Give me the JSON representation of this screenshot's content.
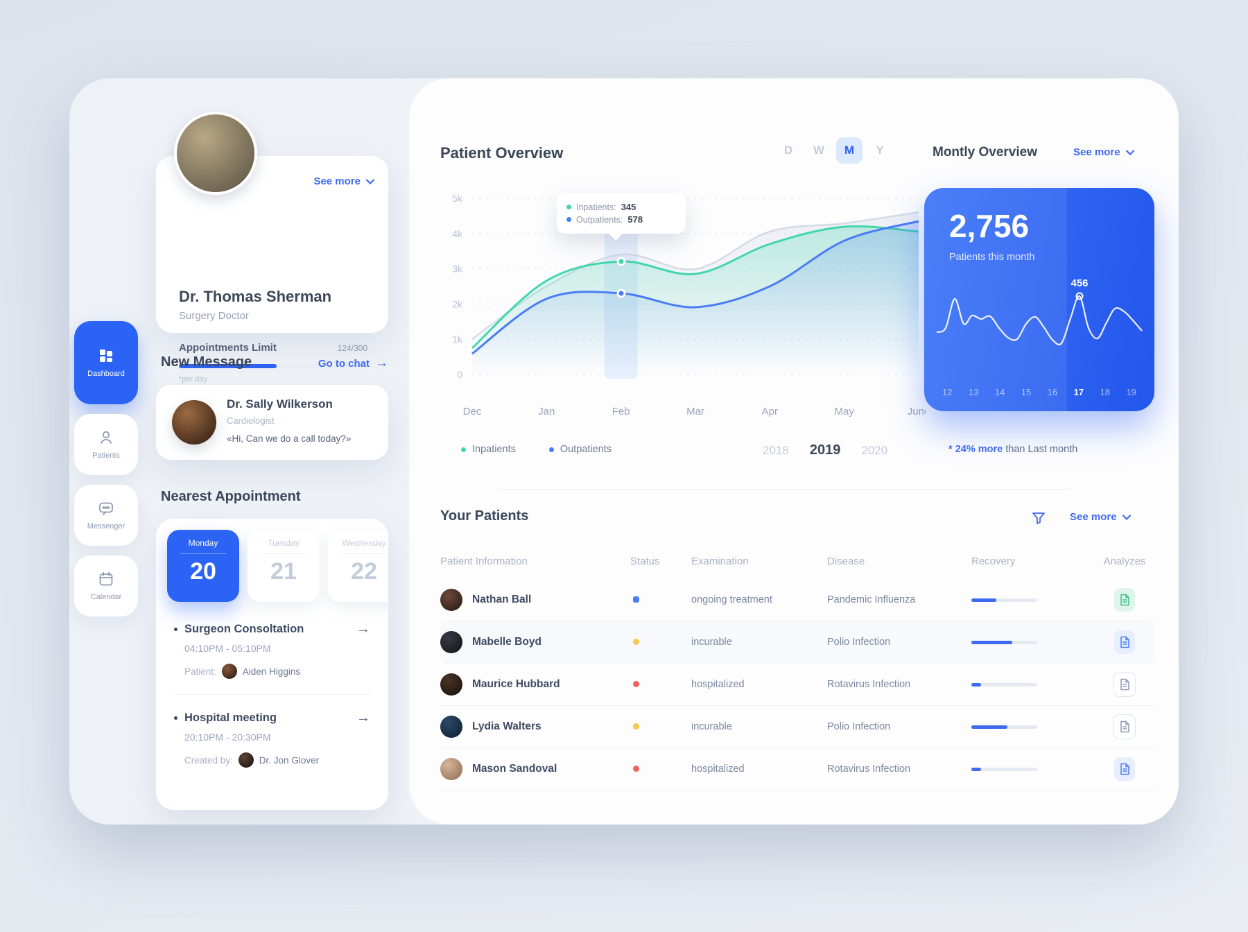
{
  "icons": {
    "arrow_right": "→",
    "star": "*"
  },
  "sidebar": {
    "items": [
      {
        "label": "Dashboard",
        "icon": "dashboard-icon",
        "active": true
      },
      {
        "label": "Patients",
        "icon": "patients-icon",
        "active": false
      },
      {
        "label": "Messenger",
        "icon": "messenger-icon",
        "active": false
      },
      {
        "label": "Calendar",
        "icon": "calendar-icon",
        "active": false
      }
    ]
  },
  "profile": {
    "name": "Dr. Thomas Sherman",
    "role": "Surgery Doctor",
    "see_more": "See more",
    "appointments_limit_label": "Appointments Limit",
    "appointments_limit_value": "124/300",
    "per_day_note": "*per day",
    "progress_pct": 52,
    "avatar_colors": [
      "#b9a887",
      "#57503f"
    ]
  },
  "new_message": {
    "title": "New Message",
    "go_to_chat": "Go to chat",
    "sender": "Dr. Sally Wilkerson",
    "sender_role": "Cardiologist",
    "preview": "«Hi, Can we do a call today?»",
    "avatar_colors": [
      "#9c6a42",
      "#2c1a10"
    ]
  },
  "nearest_appointment": {
    "title": "Nearest Appointment",
    "days": [
      {
        "day": "Monday",
        "date": "20",
        "active": true
      },
      {
        "day": "Tuesday",
        "date": "21",
        "active": false
      },
      {
        "day": "Wednesday",
        "date": "22",
        "active": false
      }
    ],
    "items": [
      {
        "title": "Surgeon Consoltation",
        "time": "04:10PM - 05:10PM",
        "meta_label": "Patient:",
        "meta_name": "Aiden Higgins",
        "meta_avatar": [
          "#8a5a3a",
          "#201510"
        ]
      },
      {
        "title": "Hospital meeting",
        "time": "20:10PM - 20:30PM",
        "meta_label": "Created by:",
        "meta_name": "Dr. Jon Glover",
        "meta_avatar": [
          "#5a4438",
          "#17100c"
        ]
      }
    ]
  },
  "patient_overview": {
    "title": "Patient Overview",
    "range_buttons": [
      "D",
      "W",
      "M",
      "Y"
    ],
    "active_range": "M",
    "tooltip": {
      "inpatients_label": "Inpatients:",
      "outpatients_label": "Outpatients:"
    },
    "years": [
      "2018",
      "2019",
      "2020"
    ],
    "active_year": "2019"
  },
  "chart_data": [
    {
      "type": "line",
      "title": "Patient Overview",
      "x": [
        "Dec",
        "Jan",
        "Feb",
        "Mar",
        "Apr",
        "May",
        "June"
      ],
      "y_ticks": [
        "0",
        "1k",
        "2k",
        "3k",
        "4k",
        "5k"
      ],
      "ylim": [
        0,
        5000
      ],
      "grid": "dashed-horizontal",
      "legend_position": "bottom-left",
      "highlight_x": "Feb",
      "series": [
        {
          "name": "Inpatients",
          "color": "#43d6ae",
          "values": [
            750,
            2650,
            3200,
            2850,
            3700,
            4200,
            4050
          ]
        },
        {
          "name": "Outpatients",
          "color": "#4a7df5",
          "values": [
            600,
            2150,
            2300,
            1900,
            2500,
            3800,
            4350
          ]
        }
      ],
      "background_series": {
        "name": "unlabeled-ghost",
        "color": "#ccd4e2",
        "values": [
          1000,
          2500,
          3400,
          3000,
          4050,
          4300,
          4600
        ]
      },
      "tooltip": {
        "inpatients": "345",
        "outpatients": "578"
      }
    },
    {
      "type": "line",
      "title": "Monthly sparkline",
      "values": [
        38,
        44,
        86,
        50,
        62,
        57,
        61,
        44,
        30,
        28,
        50,
        60,
        46,
        27,
        22,
        58,
        90,
        44,
        29,
        52,
        72,
        68,
        55,
        40
      ],
      "marker_index": 16,
      "marker_label": "456",
      "x_ticks": [
        "12",
        "13",
        "14",
        "15",
        "16",
        "17",
        "18",
        "19"
      ],
      "active_tick": "17"
    }
  ],
  "monthly_overview": {
    "title": "Montly Overview",
    "see_more": "See more",
    "total": "2,756",
    "subtitle": "Patients this month",
    "note_star": "*",
    "note_highlight": "24% more",
    "note_rest": "than Last month"
  },
  "your_patients": {
    "title": "Your Patients",
    "see_more": "See more",
    "columns": [
      "Patient Information",
      "Status",
      "Examination",
      "Disease",
      "Recovery",
      "Analyzes"
    ],
    "status_colors": {
      "square": "#4a7df5",
      "yellow": "#f5c84c",
      "red": "#f2635c"
    },
    "rows": [
      {
        "name": "Nathan Ball",
        "status_type": "square",
        "status_color": "#4a7df5",
        "examination": "ongoing treatment",
        "disease": "Pandemic Influenza",
        "recovery_pct": 38,
        "analyzes_bg": "#dff5ec",
        "analyzes_fg": "#35c08e",
        "highlight": false,
        "avatar": [
          "#6b4a3a",
          "#241712"
        ]
      },
      {
        "name": "Mabelle Boyd",
        "status_type": "dot",
        "status_color": "#f5c84c",
        "examination": "incurable",
        "disease": "Polio Infection",
        "recovery_pct": 62,
        "analyzes_bg": "#e7eeff",
        "analyzes_fg": "#4a7df5",
        "highlight": true,
        "avatar": [
          "#3a3a44",
          "#101014"
        ]
      },
      {
        "name": "Maurice Hubbard",
        "status_type": "dot",
        "status_color": "#f2635c",
        "examination": "hospitalized",
        "disease": "Rotavirus Infection",
        "recovery_pct": 15,
        "analyzes_bg": "#ffffff",
        "analyzes_fg": "#8d99b2",
        "highlight": false,
        "avatar": [
          "#4a3328",
          "#151008"
        ]
      },
      {
        "name": "Lydia Walters",
        "status_type": "dot",
        "status_color": "#f5c84c",
        "examination": "incurable",
        "disease": "Polio Infection",
        "recovery_pct": 55,
        "analyzes_bg": "#ffffff",
        "analyzes_fg": "#8d99b2",
        "highlight": false,
        "avatar": [
          "#2c4a66",
          "#0d1d2e"
        ]
      },
      {
        "name": "Mason Sandoval",
        "status_type": "dot",
        "status_color": "#f2635c",
        "examination": "hospitalized",
        "disease": "Rotavirus Infection",
        "recovery_pct": 15,
        "analyzes_bg": "#e7eeff",
        "analyzes_fg": "#4a7df5",
        "highlight": false,
        "avatar": [
          "#d8b49a",
          "#8a6a50"
        ]
      }
    ]
  }
}
